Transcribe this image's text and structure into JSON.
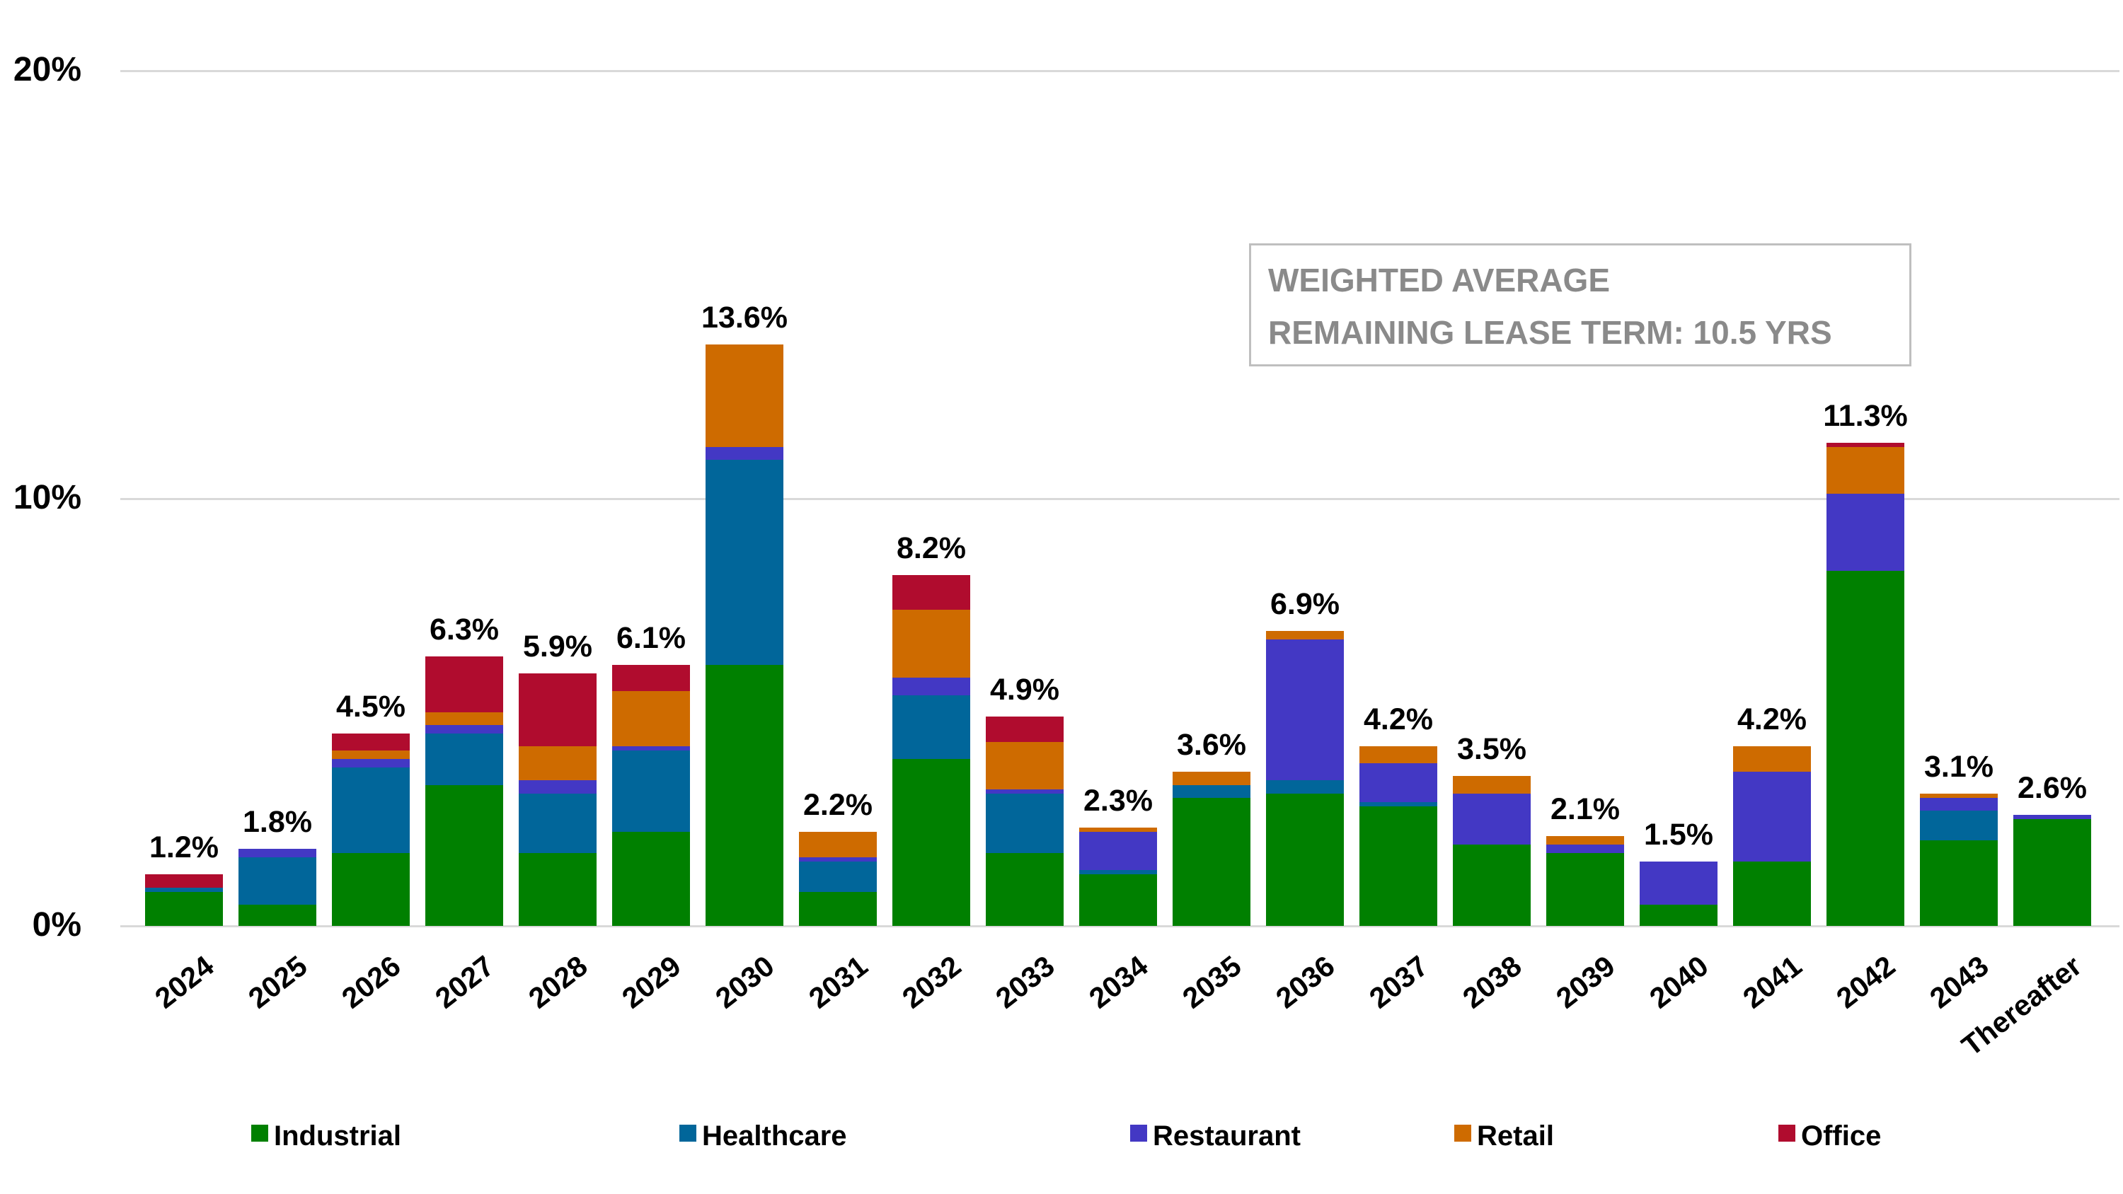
{
  "annotation": {
    "line1": "WEIGHTED AVERAGE",
    "line2": "REMAINING LEASE TERM: 10.5 YRS"
  },
  "chart_data": {
    "type": "bar",
    "stacked": true,
    "title": "",
    "xlabel": "",
    "ylabel": "",
    "ylim": [
      0,
      20
    ],
    "grid": "horizontal",
    "legend_position": "bottom",
    "y_axis_ticks": [
      {
        "label": "20%",
        "value": 20
      },
      {
        "label": "10%",
        "value": 10
      },
      {
        "label": "0%",
        "value": 0
      }
    ],
    "categories": [
      "2024",
      "2025",
      "2026",
      "2027",
      "2028",
      "2029",
      "2030",
      "2031",
      "2032",
      "2033",
      "2034",
      "2035",
      "2036",
      "2037",
      "2038",
      "2039",
      "2040",
      "2041",
      "2042",
      "2043",
      "Thereafter"
    ],
    "total_labels": [
      "1.2%",
      "1.8%",
      "4.5%",
      "6.3%",
      "5.9%",
      "6.1%",
      "13.6%",
      "2.2%",
      "8.2%",
      "4.9%",
      "2.3%",
      "3.6%",
      "6.9%",
      "4.2%",
      "3.5%",
      "2.1%",
      "1.5%",
      "4.2%",
      "11.3%",
      "3.1%",
      "2.6%"
    ],
    "totals": [
      1.2,
      1.8,
      4.5,
      6.3,
      5.9,
      6.1,
      13.6,
      2.2,
      8.2,
      4.9,
      2.3,
      3.6,
      6.9,
      4.2,
      3.5,
      2.1,
      1.5,
      4.2,
      11.3,
      3.1,
      2.6
    ],
    "series": [
      {
        "name": "Industrial",
        "color": "#008000",
        "values": [
          0.8,
          0.5,
          1.7,
          3.3,
          1.7,
          2.2,
          6.1,
          0.8,
          3.9,
          1.7,
          1.2,
          3.0,
          3.1,
          2.8,
          1.9,
          1.7,
          0.5,
          1.5,
          8.3,
          2.0,
          2.5
        ]
      },
      {
        "name": "Healthcare",
        "color": "#01669a",
        "values": [
          0.1,
          1.1,
          2.0,
          1.2,
          1.4,
          1.9,
          4.8,
          0.7,
          1.5,
          1.4,
          0.1,
          0.3,
          0.3,
          0.1,
          0.0,
          0.0,
          0.0,
          0.0,
          0.0,
          0.7,
          0.0
        ]
      },
      {
        "name": "Restaurant",
        "color": "#4338c4",
        "values": [
          0.0,
          0.2,
          0.2,
          0.2,
          0.3,
          0.1,
          0.3,
          0.1,
          0.4,
          0.1,
          0.9,
          0.0,
          3.3,
          0.9,
          1.2,
          0.2,
          1.0,
          2.1,
          1.8,
          0.3,
          0.1
        ]
      },
      {
        "name": "Retail",
        "color": "#ce6b00",
        "values": [
          0.0,
          0.0,
          0.2,
          0.3,
          0.8,
          1.3,
          2.4,
          0.6,
          1.6,
          1.1,
          0.1,
          0.3,
          0.2,
          0.4,
          0.4,
          0.2,
          0.0,
          0.6,
          1.1,
          0.1,
          0.0
        ]
      },
      {
        "name": "Office",
        "color": "#b00c2e",
        "values": [
          0.3,
          0.0,
          0.4,
          1.3,
          1.7,
          0.6,
          0.0,
          0.0,
          0.8,
          0.6,
          0.0,
          0.0,
          0.0,
          0.0,
          0.0,
          0.0,
          0.0,
          0.0,
          0.1,
          0.0,
          0.0
        ]
      }
    ],
    "legend": [
      "Industrial",
      "Healthcare",
      "Restaurant",
      "Retail",
      "Office"
    ],
    "colors": {
      "industrial": "#008000",
      "healthcare": "#01669a",
      "restaurant": "#4338c4",
      "retail": "#ce6b00",
      "office": "#b00c2e",
      "gridline": "#d9d9d9",
      "annotation_border": "#bfbfbf",
      "annotation_text": "#8a8a8a"
    }
  }
}
